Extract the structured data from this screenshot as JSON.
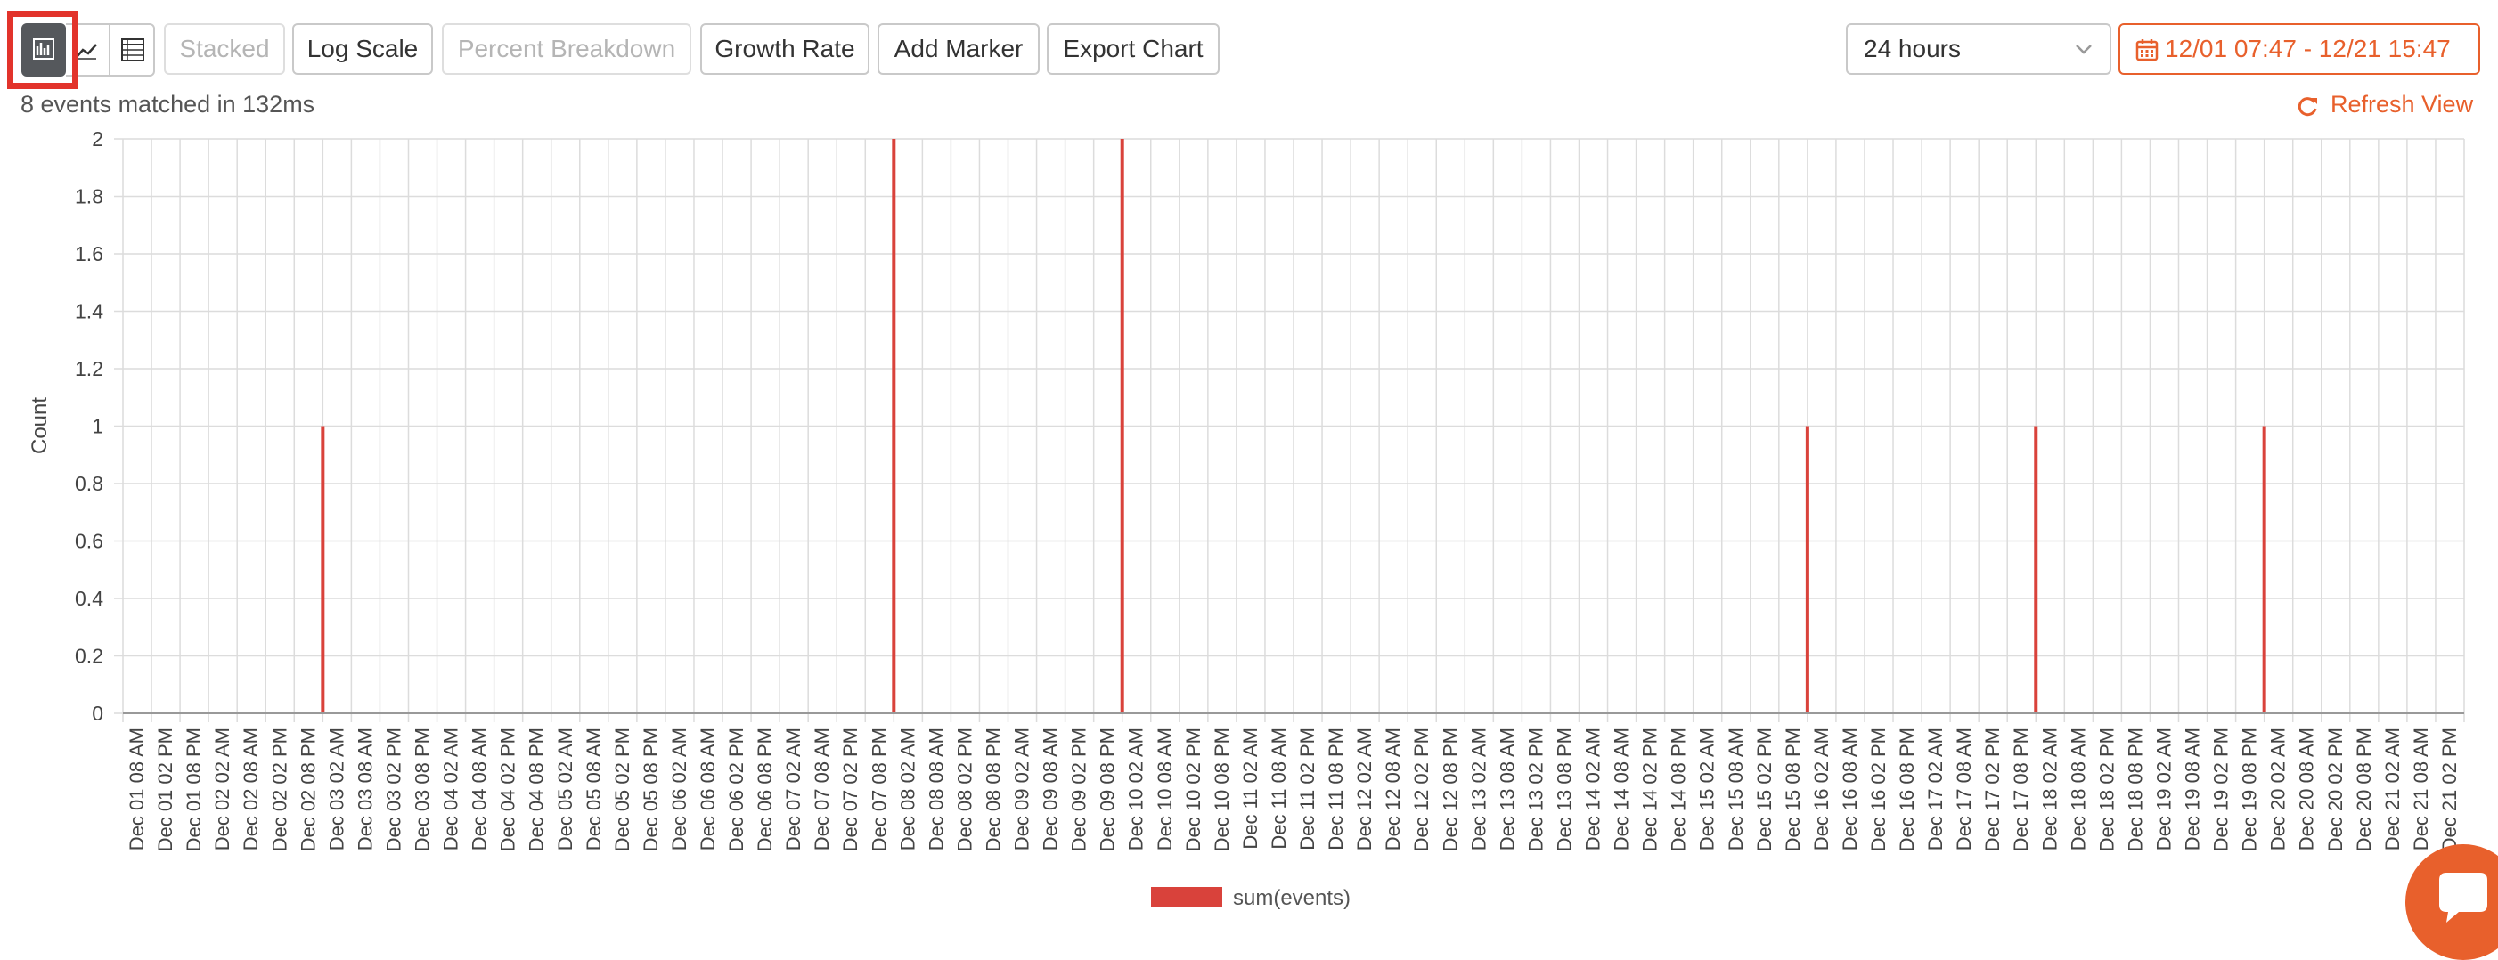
{
  "toolbar": {
    "view_icons": [
      "bar-chart-icon",
      "line-chart-icon",
      "table-icon"
    ],
    "active_view": "bar-chart-icon",
    "stacked_label": "Stacked",
    "log_scale_label": "Log Scale",
    "percent_breakdown_label": "Percent Breakdown",
    "growth_rate_label": "Growth Rate",
    "add_marker_label": "Add Marker",
    "export_chart_label": "Export Chart",
    "time_range_value": "24 hours",
    "date_range_label": "12/01 07:47 - 12/21 15:47"
  },
  "status": {
    "summary": "8 events matched in 132ms",
    "refresh_label": "Refresh View"
  },
  "colors": {
    "accent": "#e8602c",
    "series": "#d9423b",
    "highlight": "#e2332b",
    "active_view_bg": "#55585c"
  },
  "chart_data": {
    "type": "bar",
    "ylabel": "Count",
    "xlabel": "",
    "ylim": [
      0,
      2
    ],
    "yticks": [
      "0",
      "0.2",
      "0.4",
      "0.6",
      "0.8",
      "1",
      "1.2",
      "1.4",
      "1.6",
      "1.8",
      "2"
    ],
    "grid": true,
    "legend_position": "bottom-center",
    "categories": [
      "Dec 01 08 AM",
      "Dec 01 02 PM",
      "Dec 01 08 PM",
      "Dec 02 02 AM",
      "Dec 02 08 AM",
      "Dec 02 02 PM",
      "Dec 02 08 PM",
      "Dec 03 02 AM",
      "Dec 03 08 AM",
      "Dec 03 02 PM",
      "Dec 03 08 PM",
      "Dec 04 02 AM",
      "Dec 04 08 AM",
      "Dec 04 02 PM",
      "Dec 04 08 PM",
      "Dec 05 02 AM",
      "Dec 05 08 AM",
      "Dec 05 02 PM",
      "Dec 05 08 PM",
      "Dec 06 02 AM",
      "Dec 06 08 AM",
      "Dec 06 02 PM",
      "Dec 06 08 PM",
      "Dec 07 02 AM",
      "Dec 07 08 AM",
      "Dec 07 02 PM",
      "Dec 07 08 PM",
      "Dec 08 02 AM",
      "Dec 08 08 AM",
      "Dec 08 02 PM",
      "Dec 08 08 PM",
      "Dec 09 02 AM",
      "Dec 09 08 AM",
      "Dec 09 02 PM",
      "Dec 09 08 PM",
      "Dec 10 02 AM",
      "Dec 10 08 AM",
      "Dec 10 02 PM",
      "Dec 10 08 PM",
      "Dec 11 02 AM",
      "Dec 11 08 AM",
      "Dec 11 02 PM",
      "Dec 11 08 PM",
      "Dec 12 02 AM",
      "Dec 12 08 AM",
      "Dec 12 02 PM",
      "Dec 12 08 PM",
      "Dec 13 02 AM",
      "Dec 13 08 AM",
      "Dec 13 02 PM",
      "Dec 13 08 PM",
      "Dec 14 02 AM",
      "Dec 14 08 AM",
      "Dec 14 02 PM",
      "Dec 14 08 PM",
      "Dec 15 02 AM",
      "Dec 15 08 AM",
      "Dec 15 02 PM",
      "Dec 15 08 PM",
      "Dec 16 02 AM",
      "Dec 16 08 AM",
      "Dec 16 02 PM",
      "Dec 16 08 PM",
      "Dec 17 02 AM",
      "Dec 17 08 AM",
      "Dec 17 02 PM",
      "Dec 17 08 PM",
      "Dec 18 02 AM",
      "Dec 18 08 AM",
      "Dec 18 02 PM",
      "Dec 18 08 PM",
      "Dec 19 02 AM",
      "Dec 19 08 AM",
      "Dec 19 02 PM",
      "Dec 19 08 PM",
      "Dec 20 02 AM",
      "Dec 20 08 AM",
      "Dec 20 02 PM",
      "Dec 20 08 PM",
      "Dec 21 02 AM",
      "Dec 21 08 AM",
      "Dec 21 02 PM"
    ],
    "series": [
      {
        "name": "sum(events)",
        "color": "#d9423b",
        "values": [
          0,
          0,
          0,
          0,
          0,
          0,
          0,
          1,
          0,
          0,
          0,
          0,
          0,
          0,
          0,
          0,
          0,
          0,
          0,
          0,
          0,
          0,
          0,
          0,
          0,
          0,
          0,
          2,
          0,
          0,
          0,
          0,
          0,
          0,
          0,
          2,
          0,
          0,
          0,
          0,
          0,
          0,
          0,
          0,
          0,
          0,
          0,
          0,
          0,
          0,
          0,
          0,
          0,
          0,
          0,
          0,
          0,
          0,
          0,
          1,
          0,
          0,
          0,
          0,
          0,
          0,
          0,
          1,
          0,
          0,
          0,
          0,
          0,
          0,
          0,
          1,
          0,
          0,
          0,
          0,
          0,
          0
        ]
      }
    ]
  }
}
